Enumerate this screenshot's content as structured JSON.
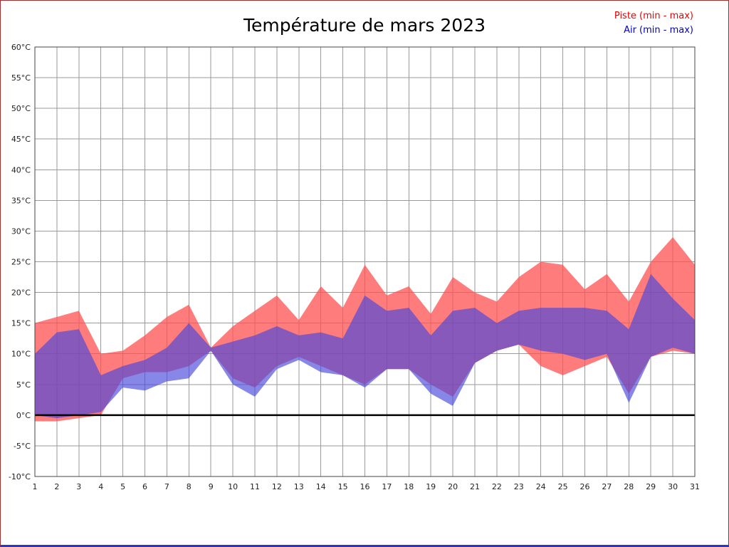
{
  "chart_data": {
    "type": "area",
    "title": "Température de mars 2023",
    "legend": [
      {
        "label": "Piste (min - max)",
        "color": "#ee0000"
      },
      {
        "label": "Air (min - max)",
        "color": "#0000cc"
      }
    ],
    "xlabel": "",
    "ylabel": "",
    "ylim": [
      -10,
      60
    ],
    "grid": true,
    "legend_position": "top-right",
    "zero_line": 0,
    "x": [
      1,
      2,
      3,
      4,
      5,
      6,
      7,
      8,
      9,
      10,
      11,
      12,
      13,
      14,
      15,
      16,
      17,
      18,
      19,
      20,
      21,
      22,
      23,
      24,
      25,
      26,
      27,
      28,
      29,
      30,
      31
    ],
    "x_tick_labels": [
      "1",
      "2",
      "3",
      "4",
      "5",
      "6",
      "7",
      "8",
      "9",
      "10",
      "11",
      "12",
      "13",
      "14",
      "15",
      "16",
      "17",
      "18",
      "19",
      "20",
      "21",
      "22",
      "23",
      "24",
      "25",
      "26",
      "27",
      "28",
      "29",
      "30",
      "31"
    ],
    "y_ticks": [
      60,
      55,
      50,
      45,
      40,
      35,
      30,
      25,
      20,
      15,
      10,
      5,
      0,
      -5,
      -10
    ],
    "y_tick_labels": [
      "60°C",
      "55°C",
      "50°C",
      "45°C",
      "40°C",
      "35°C",
      "30°C",
      "25°C",
      "20°C",
      "15°C",
      "10°C",
      "5°C",
      "0°C",
      "-5°C",
      "-10°C"
    ],
    "series": [
      {
        "name": "Piste (min - max)",
        "band": true,
        "fill": "rgba(255,80,80,0.75)",
        "max": [
          15,
          16,
          17,
          10,
          10.5,
          13,
          16,
          18,
          11,
          14.5,
          17,
          19.5,
          15.5,
          21,
          17.5,
          24.5,
          19.5,
          21,
          16.5,
          22.5,
          20,
          18.5,
          22.5,
          25,
          24.5,
          20.5,
          23,
          18.5,
          25,
          29,
          24.5
        ],
        "min": [
          -1,
          -1,
          -0.5,
          0,
          6,
          7,
          7,
          8,
          10.5,
          6,
          4.5,
          8,
          9.5,
          8,
          6.5,
          5,
          7.5,
          7.5,
          5,
          3,
          8.5,
          10.5,
          11.5,
          8,
          6.5,
          8,
          9.5,
          3.5,
          9.5,
          10.5,
          10
        ]
      },
      {
        "name": "Air (min - max)",
        "band": true,
        "fill": "rgba(70,70,220,0.65)",
        "max": [
          10,
          13.5,
          14,
          6.5,
          8,
          9,
          11,
          15,
          11,
          12,
          13,
          14.5,
          13,
          13.5,
          12.5,
          19.5,
          17,
          17.5,
          13,
          17,
          17.5,
          15,
          17,
          17.5,
          17.5,
          17.5,
          17,
          14,
          23,
          19,
          15.5
        ],
        "min": [
          0,
          -0.5,
          0,
          0.5,
          4.5,
          4,
          5.5,
          6,
          10.5,
          5,
          3,
          7.5,
          9,
          7,
          6.5,
          4.5,
          7.5,
          7.5,
          3.5,
          1.5,
          8.5,
          10.5,
          11.5,
          10.5,
          10,
          9,
          10,
          2,
          9.5,
          11,
          10
        ]
      }
    ],
    "style": {
      "grid_color": "#9a9a9a",
      "frame_color": "#444444",
      "zero_line_color": "#000000",
      "tick_label_color": "#222222"
    }
  }
}
